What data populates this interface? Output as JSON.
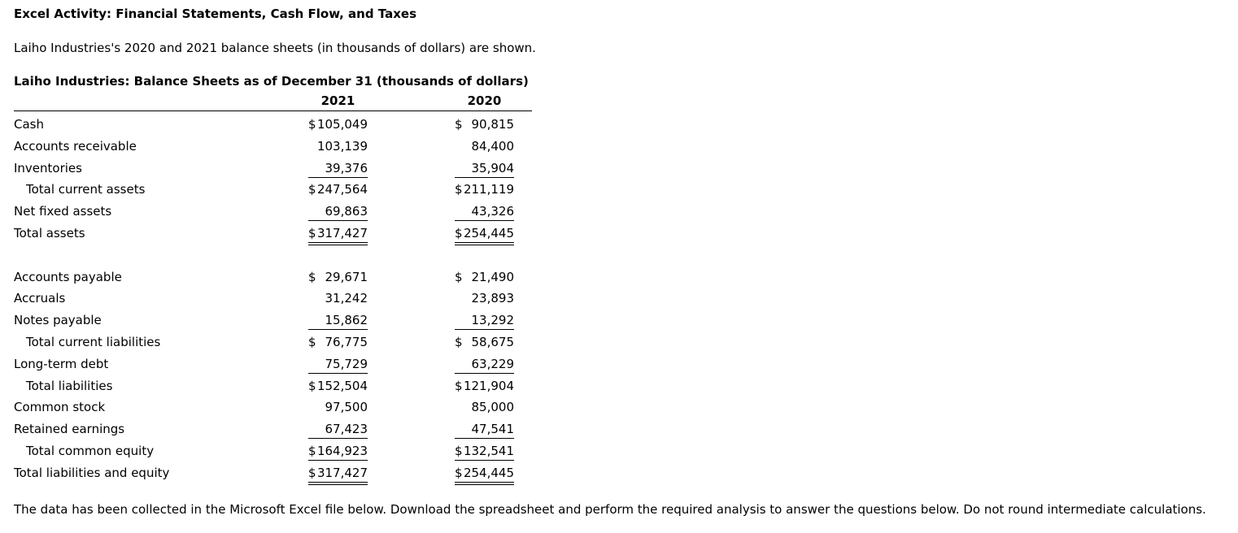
{
  "page": {
    "title": "Excel Activity: Financial Statements, Cash Flow, and Taxes",
    "intro": "Laiho Industries's 2020 and 2021 balance sheets (in thousands of dollars) are shown.",
    "footer": "The data has been collected in the Microsoft Excel file below. Download the spreadsheet and perform the required analysis to answer the questions below. Do not round intermediate calculations."
  },
  "table": {
    "title": "Laiho Industries: Balance Sheets as of December 31 (thousands of dollars)",
    "columns": [
      "2021",
      "2020"
    ],
    "rows": [
      {
        "label": "Cash",
        "indent": false,
        "rule": "none",
        "cells": [
          {
            "dollar": "$",
            "value": "105,049"
          },
          {
            "dollar": "$",
            "value": "90,815"
          }
        ]
      },
      {
        "label": "Accounts receivable",
        "indent": false,
        "rule": "none",
        "cells": [
          {
            "dollar": "",
            "value": "103,139"
          },
          {
            "dollar": "",
            "value": "84,400"
          }
        ]
      },
      {
        "label": "Inventories",
        "indent": false,
        "rule": "single",
        "cells": [
          {
            "dollar": "",
            "value": "39,376"
          },
          {
            "dollar": "",
            "value": "35,904"
          }
        ]
      },
      {
        "label": "Total current assets",
        "indent": true,
        "rule": "none",
        "cells": [
          {
            "dollar": "$",
            "value": "247,564"
          },
          {
            "dollar": "$",
            "value": "211,119"
          }
        ]
      },
      {
        "label": "Net fixed assets",
        "indent": false,
        "rule": "single",
        "cells": [
          {
            "dollar": "",
            "value": "69,863"
          },
          {
            "dollar": "",
            "value": "43,326"
          }
        ]
      },
      {
        "label": "Total assets",
        "indent": false,
        "rule": "double",
        "cells": [
          {
            "dollar": "$",
            "value": "317,427"
          },
          {
            "dollar": "$",
            "value": "254,445"
          }
        ]
      },
      {
        "spacer": true
      },
      {
        "label": "Accounts payable",
        "indent": false,
        "rule": "none",
        "cells": [
          {
            "dollar": "$",
            "value": "29,671"
          },
          {
            "dollar": "$",
            "value": "21,490"
          }
        ]
      },
      {
        "label": "Accruals",
        "indent": false,
        "rule": "none",
        "cells": [
          {
            "dollar": "",
            "value": "31,242"
          },
          {
            "dollar": "",
            "value": "23,893"
          }
        ]
      },
      {
        "label": "Notes payable",
        "indent": false,
        "rule": "single",
        "cells": [
          {
            "dollar": "",
            "value": "15,862"
          },
          {
            "dollar": "",
            "value": "13,292"
          }
        ]
      },
      {
        "label": "Total current liabilities",
        "indent": true,
        "rule": "none",
        "cells": [
          {
            "dollar": "$",
            "value": "76,775"
          },
          {
            "dollar": "$",
            "value": "58,675"
          }
        ]
      },
      {
        "label": "Long-term debt",
        "indent": false,
        "rule": "single",
        "cells": [
          {
            "dollar": "",
            "value": "75,729"
          },
          {
            "dollar": "",
            "value": "63,229"
          }
        ]
      },
      {
        "label": "Total liabilities",
        "indent": true,
        "rule": "none",
        "cells": [
          {
            "dollar": "$",
            "value": "152,504"
          },
          {
            "dollar": "$",
            "value": "121,904"
          }
        ]
      },
      {
        "label": "Common stock",
        "indent": false,
        "rule": "none",
        "cells": [
          {
            "dollar": "",
            "value": "97,500"
          },
          {
            "dollar": "",
            "value": "85,000"
          }
        ]
      },
      {
        "label": "Retained earnings",
        "indent": false,
        "rule": "single",
        "cells": [
          {
            "dollar": "",
            "value": "67,423"
          },
          {
            "dollar": "",
            "value": "47,541"
          }
        ]
      },
      {
        "label": "Total common equity",
        "indent": true,
        "rule": "single",
        "cells": [
          {
            "dollar": "$",
            "value": "164,923"
          },
          {
            "dollar": "$",
            "value": "132,541"
          }
        ]
      },
      {
        "label": "Total liabilities and equity",
        "indent": false,
        "rule": "double",
        "cells": [
          {
            "dollar": "$",
            "value": "317,427"
          },
          {
            "dollar": "$",
            "value": "254,445"
          }
        ]
      }
    ]
  }
}
